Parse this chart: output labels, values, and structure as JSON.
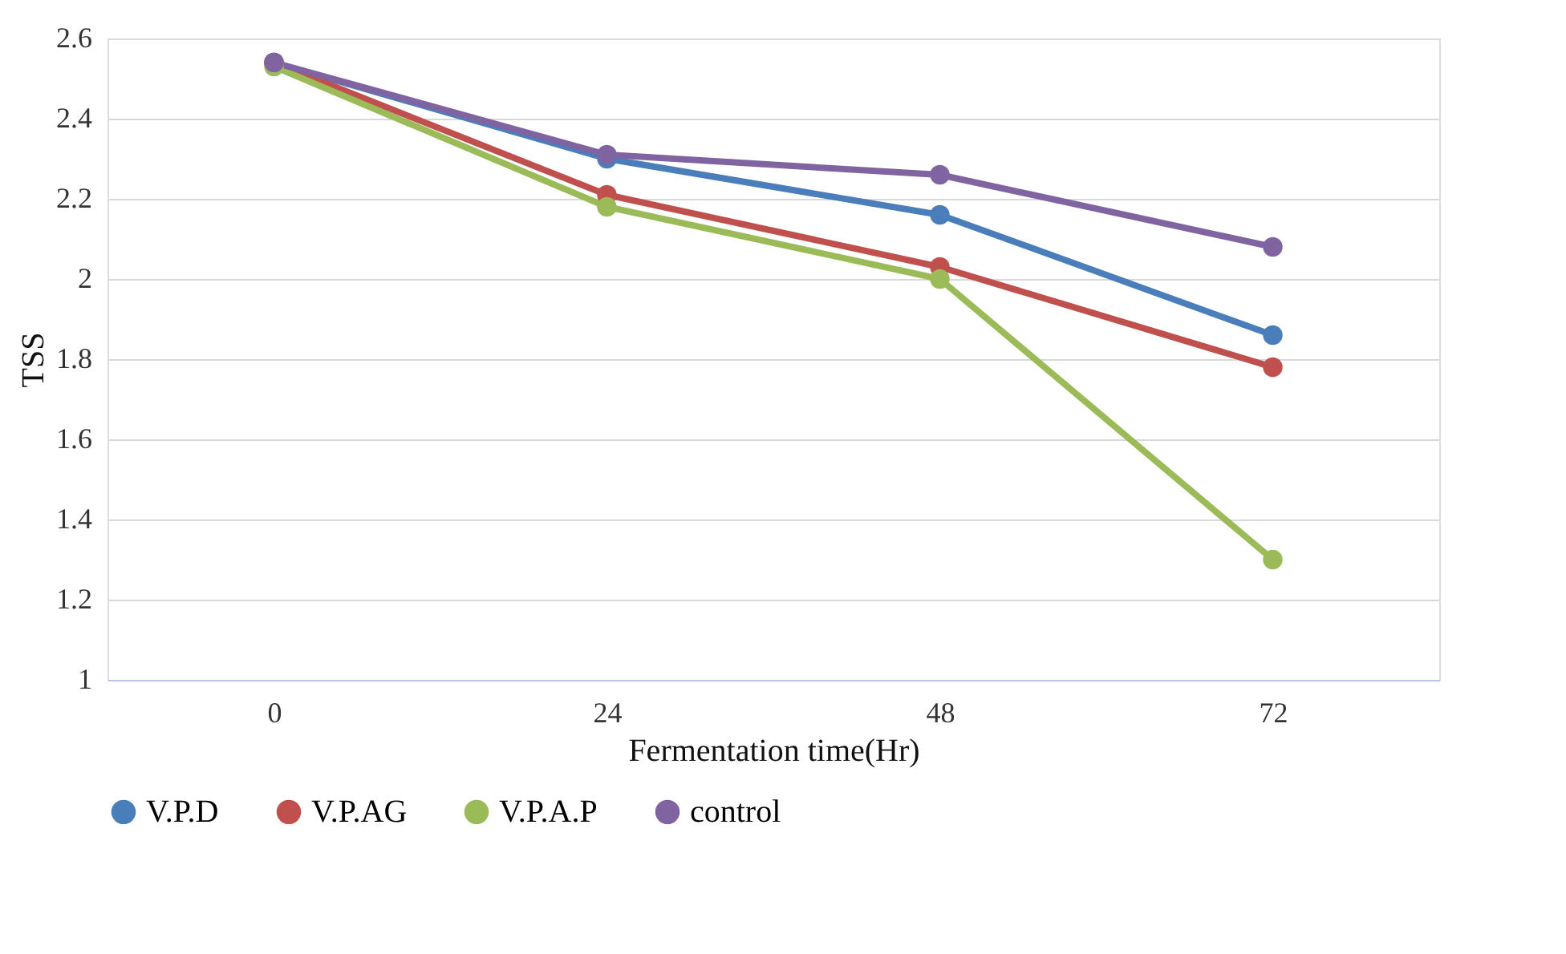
{
  "chart_data": {
    "type": "line",
    "xlabel": "Fermentation time(Hr)",
    "ylabel": "TSS",
    "categories": [
      "0",
      "24",
      "48",
      "72"
    ],
    "series": [
      {
        "name": "V.P.D",
        "color": "#4a7ebb",
        "values": [
          2.54,
          2.3,
          2.16,
          1.86
        ]
      },
      {
        "name": "V.P.AG",
        "color": "#c0504d",
        "values": [
          2.54,
          2.21,
          2.03,
          1.78
        ]
      },
      {
        "name": "V.P.A.P",
        "color": "#9bbb59",
        "values": [
          2.53,
          2.18,
          2.0,
          1.3
        ]
      },
      {
        "name": "control",
        "color": "#8064a2",
        "values": [
          2.54,
          2.31,
          2.26,
          2.08
        ]
      }
    ],
    "ylim": [
      1,
      2.6
    ],
    "yticks": [
      1,
      1.2,
      1.4,
      1.6,
      1.8,
      2,
      2.2,
      2.4,
      2.6
    ],
    "grid": "y",
    "legend": "bottom",
    "marker": "circle",
    "line_style": "solid"
  }
}
